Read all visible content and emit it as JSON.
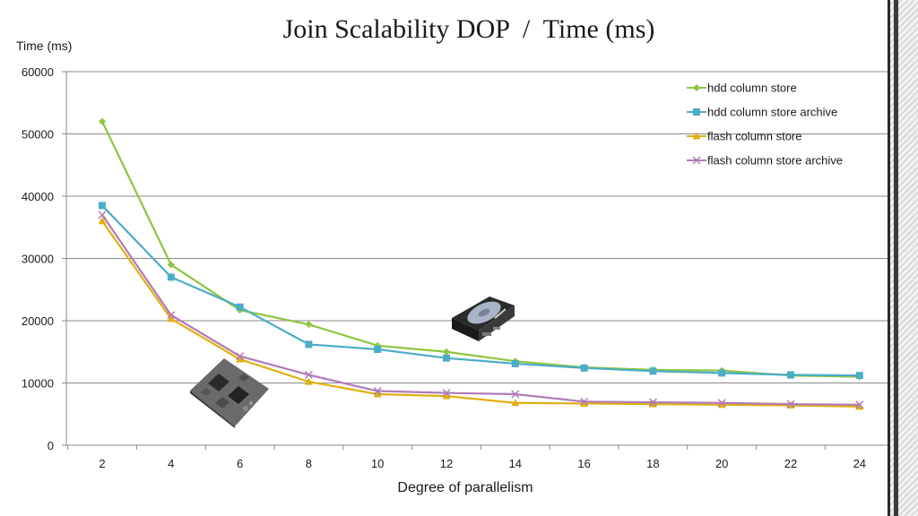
{
  "slide": {
    "title": "Join Scalability DOP  /  Time (ms)"
  },
  "chart_data": {
    "type": "line",
    "ylabel": "Time (ms)",
    "xlabel": "Degree of parallelism",
    "x": [
      2,
      4,
      6,
      8,
      10,
      12,
      14,
      16,
      18,
      20,
      22,
      24
    ],
    "ylim": [
      0,
      60000
    ],
    "yticks": [
      0,
      10000,
      20000,
      30000,
      40000,
      50000,
      60000
    ],
    "grid": "horizontal",
    "legend_position": "top-right",
    "series": [
      {
        "name": "hdd column store",
        "color": "#8dc63f",
        "marker": "diamond",
        "values": [
          52000,
          29000,
          21700,
          19400,
          16000,
          15000,
          13500,
          12500,
          12100,
          12000,
          11200,
          11000
        ]
      },
      {
        "name": "hdd column store archive",
        "color": "#4bacc6",
        "marker": "square",
        "values": [
          38500,
          27000,
          22200,
          16200,
          15400,
          14000,
          13100,
          12400,
          11900,
          11600,
          11300,
          11200
        ]
      },
      {
        "name": "flash column store",
        "color": "#e0b010",
        "marker": "triangle",
        "values": [
          36000,
          20300,
          13800,
          10200,
          8200,
          7900,
          6800,
          6700,
          6600,
          6500,
          6400,
          6200
        ]
      },
      {
        "name": "flash column store archive",
        "color": "#b07ab8",
        "marker": "cross",
        "values": [
          37000,
          20900,
          14300,
          11300,
          8700,
          8400,
          8200,
          7000,
          6900,
          6800,
          6600,
          6500
        ]
      }
    ]
  }
}
